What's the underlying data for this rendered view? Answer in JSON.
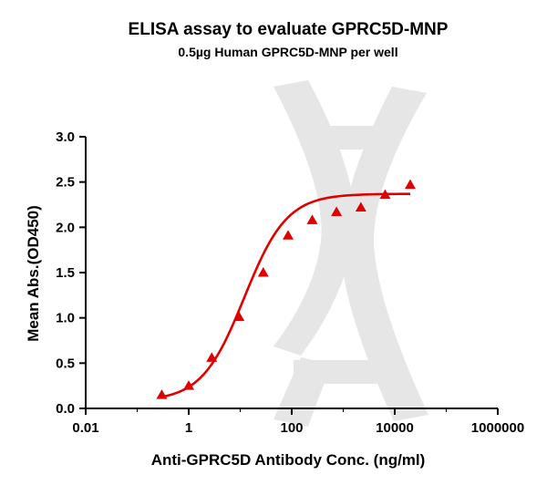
{
  "chart_data": {
    "type": "scatter",
    "title": "ELISA assay to evaluate GPRC5D-MNP",
    "subtitle": "0.5µg Human GPRC5D-MNP per well",
    "xlabel": "Anti-GPRC5D Antibody Conc. (ng/ml)",
    "ylabel": "Mean Abs.(OD450)",
    "xscale": "log",
    "xlim": [
      0.01,
      1000000
    ],
    "ylim": [
      0.0,
      3.0
    ],
    "x_ticks": [
      0.01,
      1,
      100,
      10000,
      1000000
    ],
    "x_tick_labels": [
      "0.01",
      "1",
      "100",
      "10000",
      "1000000"
    ],
    "y_ticks": [
      0.0,
      0.5,
      1.0,
      1.5,
      2.0,
      2.5,
      3.0
    ],
    "y_tick_labels": [
      "0.0",
      "0.5",
      "1.0",
      "1.5",
      "2.0",
      "2.5",
      "3.0"
    ],
    "series": [
      {
        "name": "GPRC5D-MNP",
        "marker": "triangle",
        "color": "#e00000",
        "x": [
          0.3,
          1.0,
          2.8,
          9.5,
          28,
          85,
          250,
          740,
          2200,
          6500,
          20000
        ],
        "y": [
          0.15,
          0.25,
          0.56,
          1.01,
          1.5,
          1.91,
          2.08,
          2.17,
          2.22,
          2.36,
          2.47
        ]
      }
    ],
    "fit": {
      "model": "4PL",
      "bottom": 0.08,
      "top": 2.37,
      "ec50": 12,
      "hill": 1.05,
      "x_range": [
        0.3,
        20000
      ],
      "color": "#e00000"
    },
    "legend": "none",
    "grid": false
  }
}
